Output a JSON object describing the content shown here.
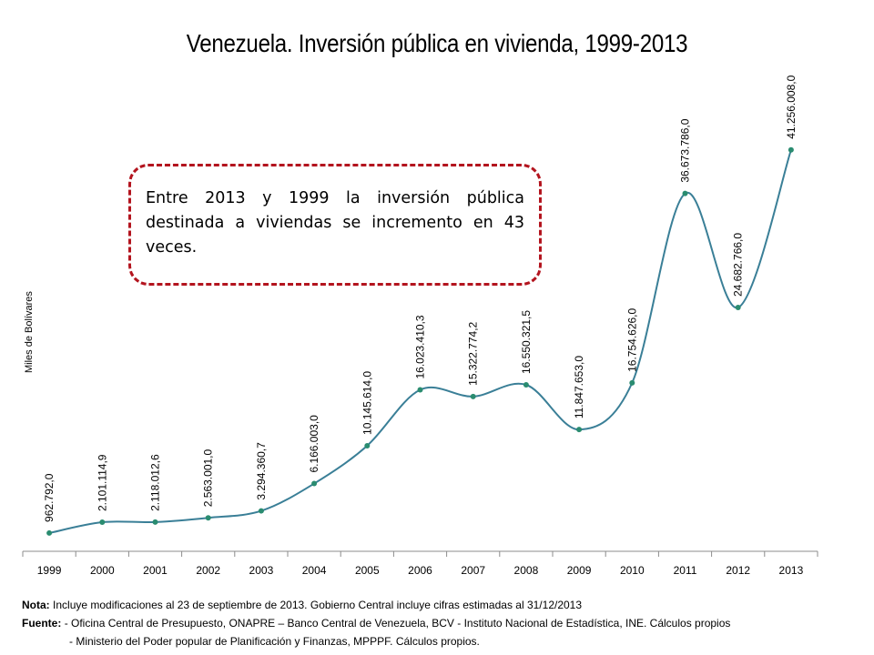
{
  "title": "Venezuela. Inversión pública en vivienda, 1999-2013",
  "callout": "Entre 2013 y 1999 la inversión pública destinada a viviendas se incremento en 43 veces.",
  "notes": {
    "nota_label": "Nota:",
    "nota_text": "Incluye modificaciones al 23 de septiembre de 2013. Gobierno Central incluye cifras estimadas al 31/12/2013",
    "fuente_label": "Fuente:",
    "fuente_line1": "- Oficina Central de Presupuesto, ONAPRE – Banco Central de Venezuela, BCV  - Instituto Nacional de Estadística, INE. Cálculos propios",
    "fuente_line2": "- Ministerio del Poder popular de Planificación y Finanzas, MPPPF. Cálculos propios."
  },
  "chart_data": {
    "type": "line",
    "title": "Venezuela. Inversión pública en vivienda, 1999-2013",
    "ylabel": "Miles de Bolívares",
    "xlabel": "",
    "categories": [
      "1999",
      "2000",
      "2001",
      "2002",
      "2003",
      "2004",
      "2005",
      "2006",
      "2007",
      "2008",
      "2009",
      "2010",
      "2011",
      "2012",
      "2013"
    ],
    "series": [
      {
        "values": [
          962792.0,
          2101114.9,
          2118012.6,
          2563001.0,
          3294360.7,
          6166003.0,
          10145614.0,
          16023410.3,
          15322774.2,
          16550321.5,
          11847653.0,
          16754626.0,
          36673786.0,
          24682766.0,
          41256008.0
        ],
        "labels": [
          "962.792,0",
          "2.101.114,9",
          "2.118.012,6",
          "2.563.001,0",
          "3.294.360,7",
          "6.166.003,0",
          "10.145.614,0",
          "16.023.410,3",
          "15.322.774,2",
          "16.550.321,5",
          "11.847.653,0",
          "16.754.626,0",
          "36.673.786,0",
          "24.682.766,0",
          "41.256.008,0"
        ]
      }
    ],
    "smooth": true,
    "grid": false,
    "legend": "none",
    "colors": {
      "line": "#3a7f97",
      "marker": "#2a8c70"
    }
  }
}
